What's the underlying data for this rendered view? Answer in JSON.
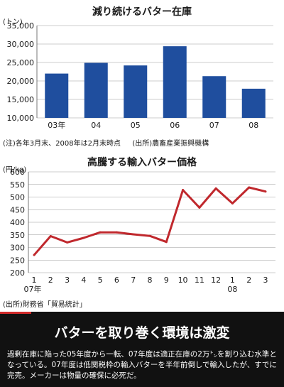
{
  "chart_data": [
    {
      "type": "bar",
      "title": "減り続けるバター在庫",
      "ylabel": "(トン)",
      "categories": [
        "03年",
        "04",
        "05",
        "06",
        "07",
        "08"
      ],
      "values": [
        22000,
        24900,
        24200,
        29400,
        21300,
        17900
      ],
      "ylim": [
        10000,
        35000
      ],
      "yticks": [
        "10,000",
        "15,000",
        "20,000",
        "25,000",
        "30,000",
        "35,000"
      ],
      "grid": true,
      "bar_color": "#1f4e9e",
      "note": "(注)各年3月末、2008年は2月末時点",
      "source": "(出所)農畜産業振興機構"
    },
    {
      "type": "line",
      "title": "高騰する輸入バター価格",
      "ylabel": "(円/kg)",
      "categories": [
        "1",
        "2",
        "3",
        "4",
        "5",
        "6",
        "7",
        "8",
        "9",
        "10",
        "11",
        "12",
        "1",
        "2",
        "3"
      ],
      "year_labels": [
        "07年",
        "08"
      ],
      "values": [
        270,
        345,
        320,
        338,
        360,
        360,
        352,
        346,
        322,
        528,
        458,
        534,
        475,
        538,
        522
      ],
      "ylim": [
        200,
        600
      ],
      "yticks": [
        "200",
        "250",
        "300",
        "350",
        "400",
        "450",
        "500",
        "550",
        "600"
      ],
      "grid": true,
      "line_color": "#c0282d",
      "source": "(出所)財務省「貿易統計」"
    }
  ],
  "banner": {
    "headline": "バターを取り巻く環境は激変",
    "body": "過剰在庫に陥った05年度から一転、07年度は適正在庫の2万㌧を割り込む水準となっている。07年度は低関税枠の輸入バターを半年前倒しで輸入したが、すでに完売。メーカーは物量の確保に必死だ。",
    "accent_color": "#d12b2b"
  }
}
